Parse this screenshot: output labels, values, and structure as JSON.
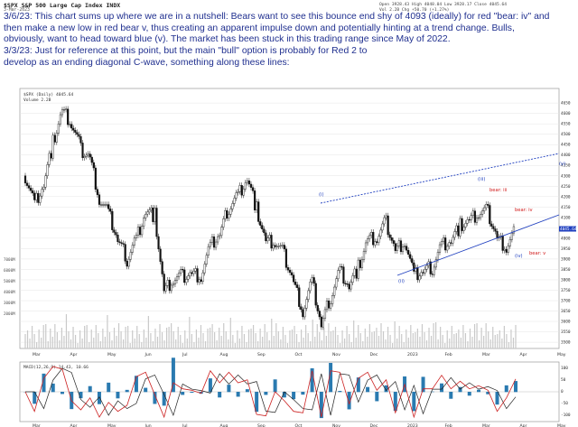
{
  "header": {
    "title": "$SPX S&P 500 Large Cap Index INDX",
    "date": "3-Mar-2023",
    "ohlc": "Open 3928.43  High 4048.04  Low 3928.17  Close 4045.64",
    "ohlc2": "Vol 2.2B  Chg +50.70 (+1.27%)"
  },
  "annotations": {
    "block1": [
      "3/6/23:  This chart sums up where we are in a nutshell:  Bears want to see this bounce end shy of 4093 (ideally) for red \"bear: iv\" and",
      "then make a new low in red bear v, thus creating an apparent impulse down and potentially hinting at a trend change.  Bulls,",
      "obviously, want to head toward blue (v).  The market has been stuck in this trading range since May of 2022."
    ],
    "block2": [
      "3/3/23:  Just for reference at this point, but the main \"bull\" option is probably for Red 2 to",
      "develop as an ending diagonal C-wave, something along these lines:"
    ]
  },
  "legends": {
    "price": "$SPX (Daily) 4045.64",
    "volume": "Volume 2.2B",
    "macd": "MACD(12,26,9) 14.43, 10.66"
  },
  "colors": {
    "background": "#ffffff",
    "annotation_text": "#1f2f8f",
    "bull_wave": "#1f3fbf",
    "bear_wave": "#d01818",
    "candle": "#111111",
    "macd_line": "#cc2222",
    "macd_signal": "#222222",
    "histogram": "#2a7ab0"
  },
  "chart_data": {
    "type": "line",
    "series_kind": "daily candlesticks (S&P 500)",
    "x": [
      "2022-03-01",
      "2022-03-08",
      "2022-03-15",
      "2022-03-22",
      "2022-03-29",
      "2022-04-05",
      "2022-04-12",
      "2022-04-19",
      "2022-04-26",
      "2022-05-03",
      "2022-05-10",
      "2022-05-17",
      "2022-05-24",
      "2022-05-31",
      "2022-06-07",
      "2022-06-14",
      "2022-06-21",
      "2022-06-28",
      "2022-07-05",
      "2022-07-12",
      "2022-07-19",
      "2022-07-26",
      "2022-08-02",
      "2022-08-09",
      "2022-08-16",
      "2022-08-23",
      "2022-08-30",
      "2022-09-06",
      "2022-09-13",
      "2022-09-20",
      "2022-09-27",
      "2022-10-04",
      "2022-10-11",
      "2022-10-18",
      "2022-10-25",
      "2022-11-01",
      "2022-11-08",
      "2022-11-15",
      "2022-11-22",
      "2022-11-29",
      "2022-12-06",
      "2022-12-13",
      "2022-12-20",
      "2022-12-27",
      "2023-01-03",
      "2023-01-10",
      "2023-01-17",
      "2023-01-24",
      "2023-01-31",
      "2023-02-07",
      "2023-02-14",
      "2023-02-21",
      "2023-02-28",
      "2023-03-03"
    ],
    "close": [
      4300,
      4170,
      4260,
      4460,
      4610,
      4550,
      4430,
      4390,
      4190,
      4120,
      3990,
      3900,
      4000,
      4130,
      4110,
      3740,
      3800,
      3820,
      3830,
      3820,
      3960,
      4020,
      4150,
      4210,
      4290,
      4140,
      3980,
      3980,
      3920,
      3790,
      3650,
      3790,
      3580,
      3720,
      3850,
      3770,
      3860,
      3990,
      4000,
      4080,
      3940,
      3990,
      3820,
      3840,
      3860,
      3970,
      3990,
      4060,
      4080,
      4120,
      4130,
      4000,
      3960,
      4045
    ],
    "yticks": [
      3500,
      3550,
      3600,
      3650,
      3700,
      3750,
      3800,
      3850,
      3900,
      3950,
      4000,
      4050,
      4100,
      4150,
      4200,
      4250,
      4300,
      4350,
      4400,
      4450,
      4500,
      4550,
      4600,
      4650
    ],
    "ylim": [
      3470,
      4720
    ],
    "month_labels": [
      "Mar",
      "Apr",
      "May",
      "Jun",
      "Jul",
      "Aug",
      "Sep",
      "Oct",
      "Nov",
      "Dec",
      "2023",
      "Feb",
      "Mar",
      "Apr",
      "May"
    ],
    "wave_labels_bull": [
      "(i)",
      "(ii)",
      "(iii)",
      "(iv)",
      "(v)"
    ],
    "wave_labels_bear": [
      "bear: iii",
      "bear: iv",
      "bear: v"
    ],
    "current_price_label": "4045.64",
    "volume_axis": [
      "7000M",
      "6000M",
      "5000M",
      "4000M",
      "3000M",
      "2000M"
    ],
    "macd_axis": [
      "100",
      "50",
      "0",
      "-50",
      "-100"
    ]
  }
}
